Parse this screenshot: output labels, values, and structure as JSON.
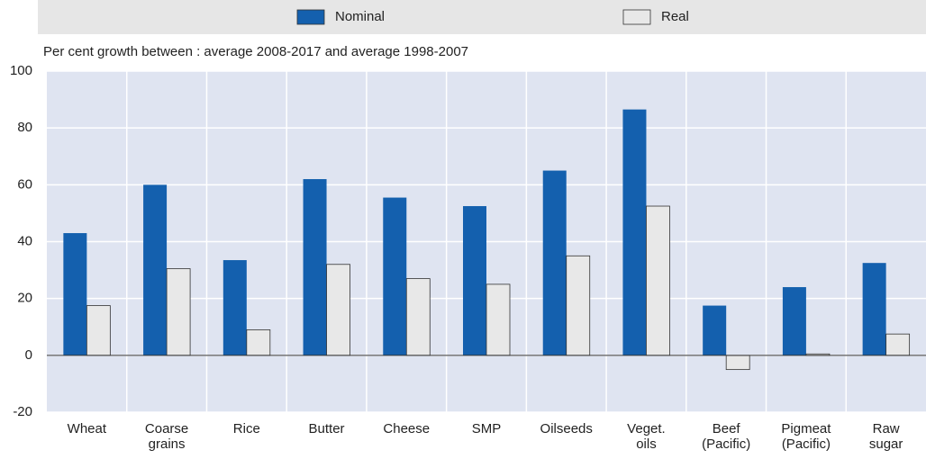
{
  "chart_data": {
    "type": "bar",
    "subtitle": "Per cent growth between : average 2008-2017 and average 1998-2007",
    "categories": [
      "Wheat",
      "Coarse grains",
      "Rice",
      "Butter",
      "Cheese",
      "SMP",
      "Oilseeds",
      "Veget. oils",
      "Beef (Pacific)",
      "Pigmeat (Pacific)",
      "Raw sugar"
    ],
    "series": [
      {
        "name": "Nominal",
        "color": "#1460ae",
        "values": [
          43,
          60,
          33.5,
          62,
          55.5,
          52.5,
          65,
          86.5,
          17.5,
          24,
          32.5
        ]
      },
      {
        "name": "Real",
        "color": "#e8e8e8",
        "values": [
          17.5,
          30.5,
          9,
          32,
          27,
          25,
          35,
          52.5,
          -5,
          0.5,
          7.5
        ]
      }
    ],
    "ylim": [
      -20,
      100
    ],
    "yticks": [
      -20,
      0,
      20,
      40,
      60,
      80,
      100
    ],
    "grid": true
  }
}
